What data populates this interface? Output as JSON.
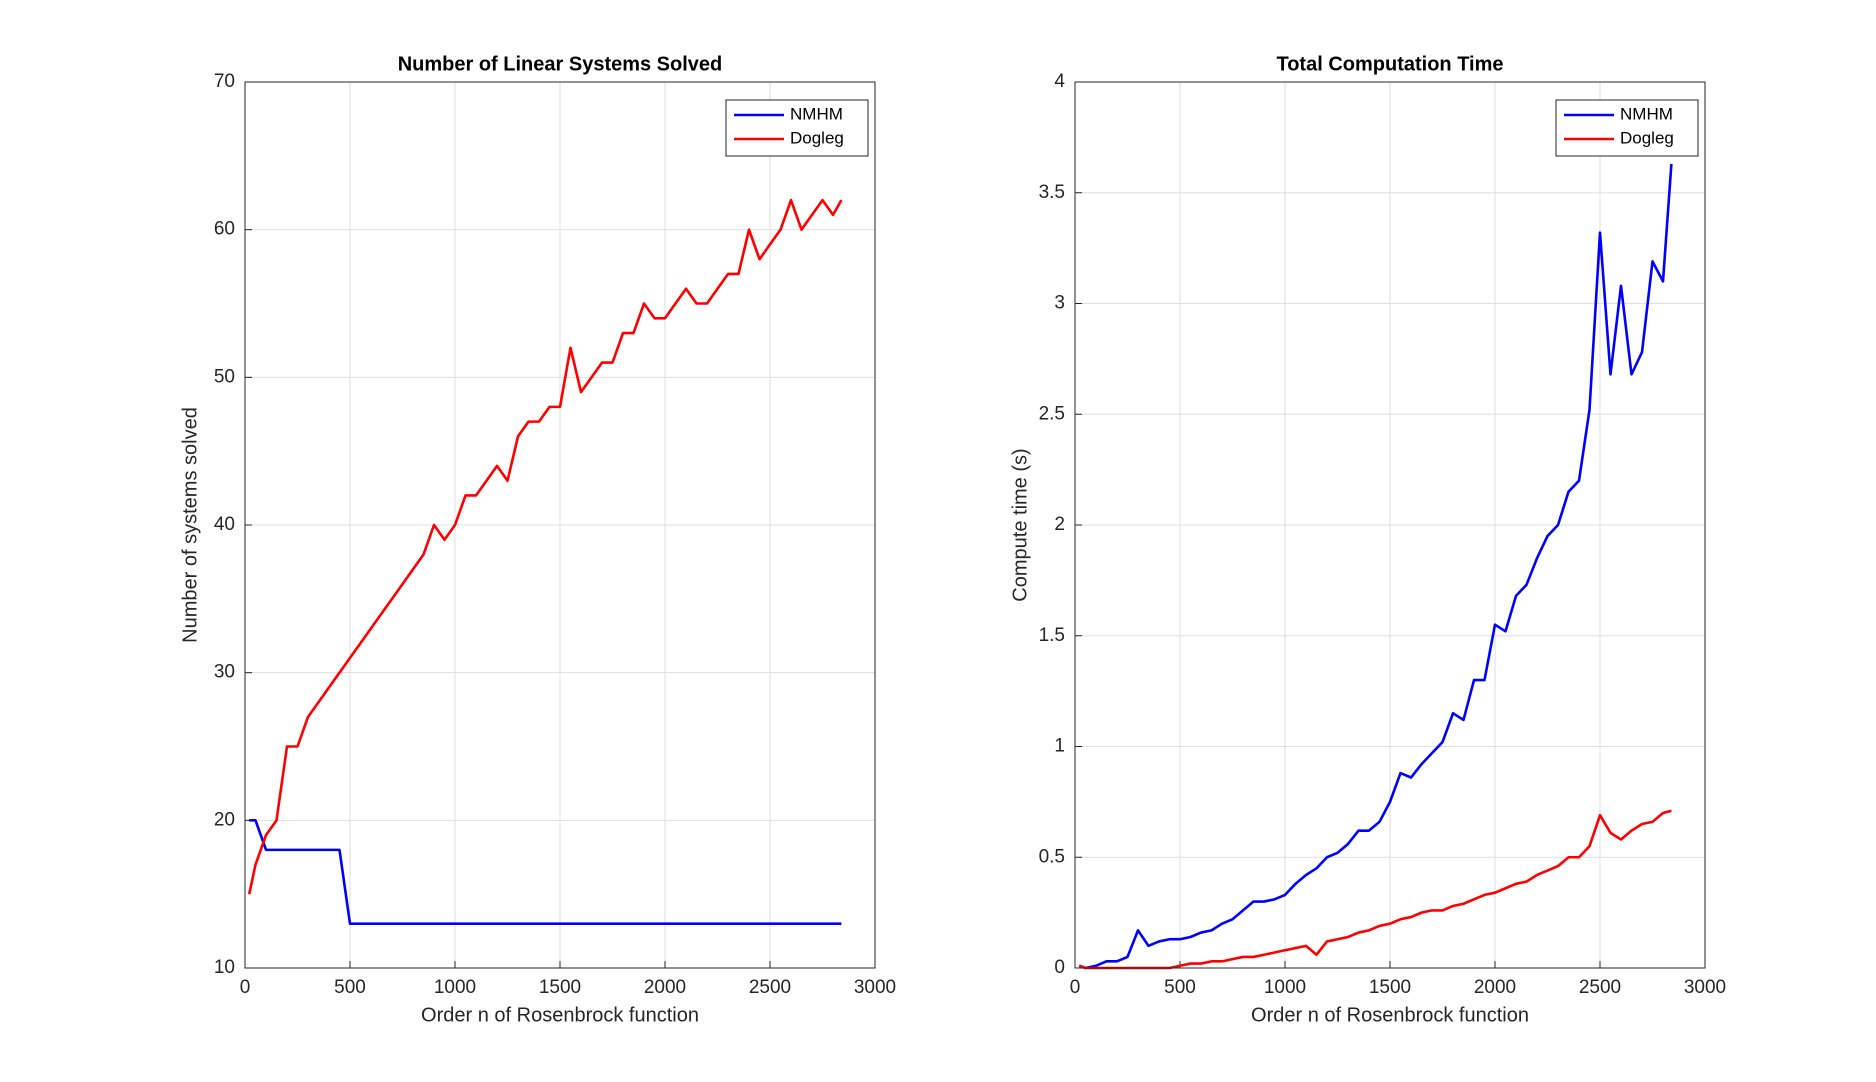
{
  "chart_data": [
    {
      "type": "line",
      "title": "Number of Linear Systems Solved",
      "xlabel": "Order n of Rosenbrock function",
      "ylabel": "Number of systems solved",
      "x": [
        20,
        50,
        100,
        150,
        200,
        250,
        300,
        350,
        400,
        450,
        500,
        550,
        600,
        650,
        700,
        750,
        800,
        850,
        900,
        950,
        1000,
        1050,
        1100,
        1150,
        1200,
        1250,
        1300,
        1350,
        1400,
        1450,
        1500,
        1550,
        1600,
        1650,
        1700,
        1750,
        1800,
        1850,
        1900,
        1950,
        2000,
        2050,
        2100,
        2150,
        2200,
        2250,
        2300,
        2350,
        2400,
        2450,
        2500,
        2550,
        2600,
        2650,
        2700,
        2750,
        2800,
        2840
      ],
      "series": [
        {
          "name": "NMHM",
          "color": "#0000ff",
          "values": [
            20,
            20,
            18,
            18,
            18,
            18,
            18,
            18,
            18,
            18,
            13,
            13,
            13,
            13,
            13,
            13,
            13,
            13,
            13,
            13,
            13,
            13,
            13,
            13,
            13,
            13,
            13,
            13,
            13,
            13,
            13,
            13,
            13,
            13,
            13,
            13,
            13,
            13,
            13,
            13,
            13,
            13,
            13,
            13,
            13,
            13,
            13,
            13,
            13,
            13,
            13,
            13,
            13,
            13,
            13,
            13,
            13,
            13
          ]
        },
        {
          "name": "Dogleg",
          "color": "#ff0000",
          "values": [
            15,
            17,
            19,
            20,
            25,
            25,
            27,
            28,
            29,
            30,
            31,
            32,
            33,
            34,
            35,
            36,
            37,
            38,
            40,
            39,
            40,
            42,
            42,
            43,
            44,
            43,
            46,
            47,
            47,
            48,
            48,
            52,
            49,
            50,
            51,
            51,
            53,
            53,
            55,
            54,
            54,
            55,
            56,
            55,
            55,
            56,
            57,
            57,
            60,
            58,
            59,
            60,
            62,
            60,
            61,
            62,
            61,
            62
          ]
        }
      ],
      "xlim": [
        0,
        3000
      ],
      "xticks": [
        0,
        500,
        1000,
        1500,
        2000,
        2500,
        3000
      ],
      "ylim": [
        10,
        70
      ],
      "yticks": [
        10,
        20,
        30,
        40,
        50,
        60,
        70
      ],
      "grid": true,
      "legend": "upper right"
    },
    {
      "type": "line",
      "title": "Total Computation Time",
      "xlabel": "Order n of Rosenbrock function",
      "ylabel": "Compute time (s)",
      "x": [
        20,
        50,
        100,
        150,
        200,
        250,
        300,
        350,
        400,
        450,
        500,
        550,
        600,
        650,
        700,
        750,
        800,
        850,
        900,
        950,
        1000,
        1050,
        1100,
        1150,
        1200,
        1250,
        1300,
        1350,
        1400,
        1450,
        1500,
        1550,
        1600,
        1650,
        1700,
        1750,
        1800,
        1850,
        1900,
        1950,
        2000,
        2050,
        2100,
        2150,
        2200,
        2250,
        2300,
        2350,
        2400,
        2450,
        2500,
        2550,
        2600,
        2650,
        2700,
        2750,
        2800,
        2840
      ],
      "series": [
        {
          "name": "NMHM",
          "color": "#0000ff",
          "values": [
            0.01,
            0,
            0.01,
            0.03,
            0.03,
            0.05,
            0.17,
            0.1,
            0.12,
            0.13,
            0.13,
            0.14,
            0.16,
            0.17,
            0.2,
            0.22,
            0.26,
            0.3,
            0.3,
            0.31,
            0.33,
            0.38,
            0.42,
            0.45,
            0.5,
            0.52,
            0.56,
            0.62,
            0.62,
            0.66,
            0.75,
            0.88,
            0.86,
            0.92,
            0.97,
            1.02,
            1.15,
            1.12,
            1.3,
            1.3,
            1.55,
            1.52,
            1.68,
            1.73,
            1.85,
            1.95,
            2,
            2.15,
            2.2,
            2.52,
            3.32,
            2.68,
            3.08,
            2.68,
            2.78,
            3.19,
            3.1,
            3.63
          ]
        },
        {
          "name": "Dogleg",
          "color": "#ff0000",
          "values": [
            0.01,
            0,
            0,
            0,
            0,
            0,
            0,
            0,
            0,
            0,
            0.01,
            0.02,
            0.02,
            0.03,
            0.03,
            0.04,
            0.05,
            0.05,
            0.06,
            0.07,
            0.08,
            0.09,
            0.1,
            0.06,
            0.12,
            0.13,
            0.14,
            0.16,
            0.17,
            0.19,
            0.2,
            0.22,
            0.23,
            0.25,
            0.26,
            0.26,
            0.28,
            0.29,
            0.31,
            0.33,
            0.34,
            0.36,
            0.38,
            0.39,
            0.42,
            0.44,
            0.46,
            0.5,
            0.5,
            0.55,
            0.69,
            0.61,
            0.58,
            0.62,
            0.65,
            0.66,
            0.7,
            0.71
          ]
        }
      ],
      "xlim": [
        0,
        3000
      ],
      "xticks": [
        0,
        500,
        1000,
        1500,
        2000,
        2500,
        3000
      ],
      "ylim": [
        0,
        4
      ],
      "yticks": [
        0,
        0.5,
        1,
        1.5,
        2,
        2.5,
        3,
        3.5,
        4
      ],
      "grid": true,
      "legend": "upper right"
    }
  ]
}
